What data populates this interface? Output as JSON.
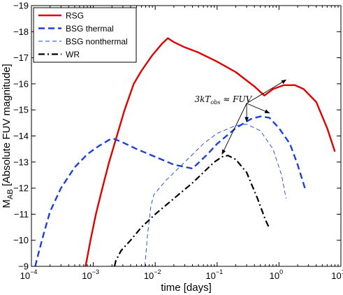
{
  "chart_data": {
    "type": "line",
    "xlabel": "time [days]",
    "ylabel_main": "M",
    "ylabel_sub": "AB",
    "ylabel_rest": " [Absolute FUV magnitude]",
    "x_scale": "log",
    "xlim": [
      0.0001,
      10
    ],
    "ylim": [
      -9,
      -19
    ],
    "y_inverted": true,
    "grid": false,
    "legend_position": "top-left",
    "x_ticks": [
      {
        "value": 0.0001,
        "base": "10",
        "exp": "−4"
      },
      {
        "value": 0.001,
        "base": "10",
        "exp": "−3"
      },
      {
        "value": 0.01,
        "base": "10",
        "exp": "−2"
      },
      {
        "value": 0.1,
        "base": "10",
        "exp": "−1"
      },
      {
        "value": 1,
        "base": "10",
        "exp": "0"
      },
      {
        "value": 10,
        "base": "10",
        "exp": "1"
      }
    ],
    "y_ticks": [
      {
        "value": -9,
        "label": "−9"
      },
      {
        "value": -10,
        "label": "−10"
      },
      {
        "value": -11,
        "label": "−11"
      },
      {
        "value": -12,
        "label": "−12"
      },
      {
        "value": -13,
        "label": "−13"
      },
      {
        "value": -14,
        "label": "−14"
      },
      {
        "value": -15,
        "label": "−15"
      },
      {
        "value": -16,
        "label": "−16"
      },
      {
        "value": -17,
        "label": "−17"
      },
      {
        "value": -18,
        "label": "−18"
      },
      {
        "value": -19,
        "label": "−19"
      }
    ],
    "series": [
      {
        "name": "RSG",
        "color": "#e00000",
        "dash": "none",
        "width": 2.4,
        "points": [
          [
            0.00075,
            -9
          ],
          [
            0.0009,
            -10
          ],
          [
            0.0011,
            -11
          ],
          [
            0.0014,
            -12
          ],
          [
            0.0018,
            -13
          ],
          [
            0.0024,
            -14
          ],
          [
            0.0032,
            -15
          ],
          [
            0.0045,
            -16
          ],
          [
            0.006,
            -16.5
          ],
          [
            0.009,
            -17.1
          ],
          [
            0.013,
            -17.55
          ],
          [
            0.016,
            -17.75
          ],
          [
            0.02,
            -17.6
          ],
          [
            0.03,
            -17.4
          ],
          [
            0.05,
            -17.2
          ],
          [
            0.1,
            -16.85
          ],
          [
            0.2,
            -16.45
          ],
          [
            0.4,
            -15.9
          ],
          [
            0.58,
            -15.55
          ],
          [
            0.8,
            -15.8
          ],
          [
            1.2,
            -15.95
          ],
          [
            1.8,
            -15.95
          ],
          [
            2.5,
            -15.8
          ],
          [
            4,
            -15.3
          ],
          [
            6,
            -14.3
          ],
          [
            8,
            -13.4
          ]
        ]
      },
      {
        "name": "BSG thermal",
        "color": "#1a3fe0",
        "dash": "9,5",
        "width": 2.4,
        "points": [
          [
            0.000115,
            -9
          ],
          [
            0.00013,
            -9.5
          ],
          [
            0.00016,
            -10.3
          ],
          [
            0.0002,
            -11.1
          ],
          [
            0.0003,
            -12
          ],
          [
            0.0005,
            -12.8
          ],
          [
            0.0008,
            -13.3
          ],
          [
            0.0012,
            -13.6
          ],
          [
            0.0018,
            -13.85
          ],
          [
            0.0021,
            -13.9
          ],
          [
            0.003,
            -13.75
          ],
          [
            0.005,
            -13.5
          ],
          [
            0.01,
            -13.2
          ],
          [
            0.02,
            -12.9
          ],
          [
            0.04,
            -12.75
          ],
          [
            0.07,
            -13.3
          ],
          [
            0.1,
            -13.7
          ],
          [
            0.2,
            -14.3
          ],
          [
            0.35,
            -14.65
          ],
          [
            0.5,
            -14.75
          ],
          [
            0.7,
            -14.7
          ],
          [
            1,
            -14.3
          ],
          [
            1.5,
            -13.7
          ],
          [
            2,
            -12.9
          ],
          [
            2.7,
            -11.9
          ]
        ]
      },
      {
        "name": "BSG nonthermal",
        "color": "#1a3fe0",
        "dash": "6,4",
        "width": 0.9,
        "points": [
          [
            0.0068,
            -9
          ],
          [
            0.0075,
            -10.2
          ],
          [
            0.0085,
            -11.3
          ],
          [
            0.0095,
            -11.75
          ],
          [
            0.015,
            -12.3
          ],
          [
            0.03,
            -13
          ],
          [
            0.06,
            -13.7
          ],
          [
            0.1,
            -14.1
          ],
          [
            0.2,
            -14.4
          ],
          [
            0.3,
            -14.45
          ],
          [
            0.5,
            -14.2
          ],
          [
            0.8,
            -13.5
          ],
          [
            1.1,
            -12.5
          ],
          [
            1.3,
            -11.6
          ]
        ]
      },
      {
        "name": "WR",
        "color": "#000000",
        "dash": "9,4,2,4",
        "width": 2.2,
        "points": [
          [
            0.0022,
            -9
          ],
          [
            0.0023,
            -9.2
          ],
          [
            0.0028,
            -9.6
          ],
          [
            0.004,
            -10
          ],
          [
            0.006,
            -10.5
          ],
          [
            0.01,
            -11
          ],
          [
            0.02,
            -11.6
          ],
          [
            0.04,
            -12.2
          ],
          [
            0.06,
            -12.6
          ],
          [
            0.09,
            -13
          ],
          [
            0.12,
            -13.2
          ],
          [
            0.15,
            -13.25
          ],
          [
            0.2,
            -13.1
          ],
          [
            0.3,
            -12.6
          ],
          [
            0.45,
            -11.6
          ],
          [
            0.6,
            -10.8
          ],
          [
            0.7,
            -10.45
          ]
        ]
      }
    ],
    "annotation": {
      "text": "3kT",
      "sub": "obs",
      "rest": " ≈ FUV",
      "anchor": [
        0.125,
        -15.3
      ],
      "arrow_from": [
        0.3,
        -15.25
      ],
      "arrow_targets": [
        [
          1.3,
          -16.15
        ],
        [
          0.7,
          -14.88
        ],
        [
          0.3,
          -14.55
        ],
        [
          0.12,
          -13.3
        ]
      ]
    }
  }
}
